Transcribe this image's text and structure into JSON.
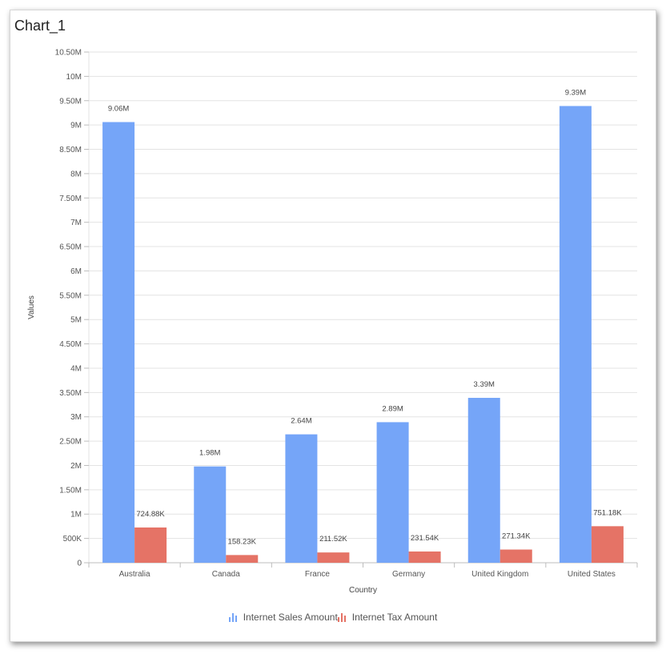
{
  "chart_title": "Chart_1",
  "colors": {
    "sales": "#75a5f8",
    "tax": "#e57366",
    "grid": "#e3e3e3",
    "axis": "#bdbdbd"
  },
  "chart_data": {
    "type": "bar",
    "title": "Chart_1",
    "xlabel": "Country",
    "ylabel": "Values",
    "ylim": [
      0,
      10500000
    ],
    "y_ticks": [
      {
        "value": 0,
        "label": "0"
      },
      {
        "value": 500000,
        "label": "500K"
      },
      {
        "value": 1000000,
        "label": "1M"
      },
      {
        "value": 1500000,
        "label": "1.50M"
      },
      {
        "value": 2000000,
        "label": "2M"
      },
      {
        "value": 2500000,
        "label": "2.50M"
      },
      {
        "value": 3000000,
        "label": "3M"
      },
      {
        "value": 3500000,
        "label": "3.50M"
      },
      {
        "value": 4000000,
        "label": "4M"
      },
      {
        "value": 4500000,
        "label": "4.50M"
      },
      {
        "value": 5000000,
        "label": "5M"
      },
      {
        "value": 5500000,
        "label": "5.50M"
      },
      {
        "value": 6000000,
        "label": "6M"
      },
      {
        "value": 6500000,
        "label": "6.50M"
      },
      {
        "value": 7000000,
        "label": "7M"
      },
      {
        "value": 7500000,
        "label": "7.50M"
      },
      {
        "value": 8000000,
        "label": "8M"
      },
      {
        "value": 8500000,
        "label": "8.50M"
      },
      {
        "value": 9000000,
        "label": "9M"
      },
      {
        "value": 9500000,
        "label": "9.50M"
      },
      {
        "value": 10000000,
        "label": "10M"
      },
      {
        "value": 10500000,
        "label": "10.50M"
      }
    ],
    "categories": [
      "Australia",
      "Canada",
      "France",
      "Germany",
      "United Kingdom",
      "United States"
    ],
    "series": [
      {
        "name": "Internet Sales Amount",
        "color_key": "sales",
        "values": [
          9060000,
          1980000,
          2640000,
          2890000,
          3390000,
          9390000
        ],
        "labels": [
          "9.06M",
          "1.98M",
          "2.64M",
          "2.89M",
          "3.39M",
          "9.39M"
        ]
      },
      {
        "name": "Internet Tax Amount",
        "color_key": "tax",
        "values": [
          724880,
          158230,
          211520,
          231540,
          271340,
          751180
        ],
        "labels": [
          "724.88K",
          "158.23K",
          "211.52K",
          "231.54K",
          "271.34K",
          "751.18K"
        ]
      }
    ],
    "grid": true,
    "legend_position": "bottom-center"
  }
}
